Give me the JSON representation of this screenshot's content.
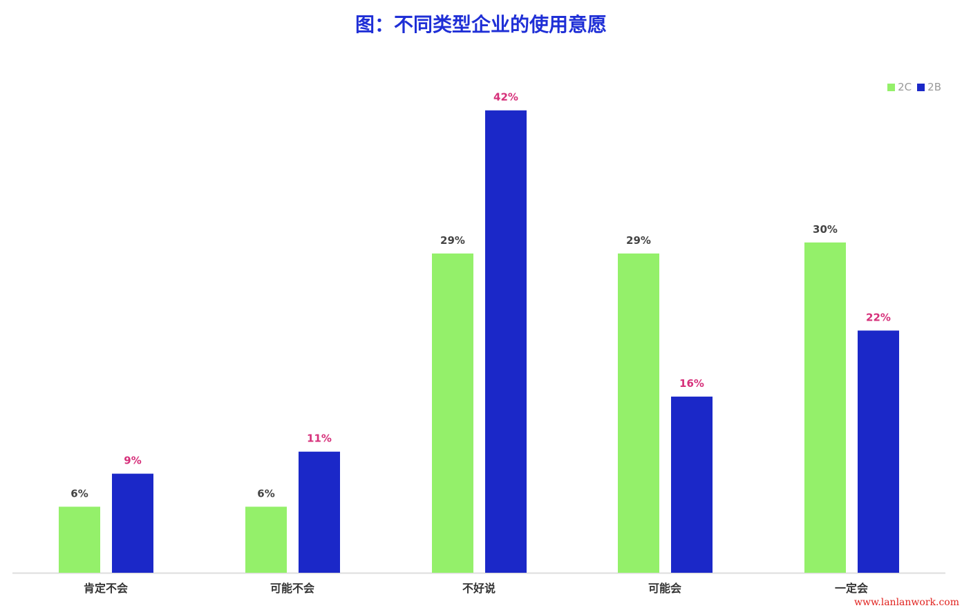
{
  "title": "图：不同类型企业的使用意愿",
  "watermark": "www.lanlanwork.com",
  "chart_data": {
    "type": "bar",
    "title": "图：不同类型企业的使用意愿",
    "categories": [
      "肯定不会",
      "可能不会",
      "不好说",
      "可能会",
      "一定会"
    ],
    "series": [
      {
        "name": "2C",
        "values": [
          6,
          6,
          29,
          29,
          30
        ],
        "labels": [
          "6%",
          "6%",
          "29%",
          "29%",
          "30%"
        ],
        "color": "#94f06a",
        "label_color": "#444444"
      },
      {
        "name": "2B",
        "values": [
          9,
          11,
          42,
          16,
          22
        ],
        "labels": [
          "9%",
          "11%",
          "42%",
          "16%",
          "22%"
        ],
        "color": "#1b28c8",
        "label_color": "#d6307a"
      }
    ],
    "ylim": [
      0,
      46
    ],
    "grid": false,
    "legend": "top-right",
    "xlabel": "",
    "ylabel": ""
  }
}
